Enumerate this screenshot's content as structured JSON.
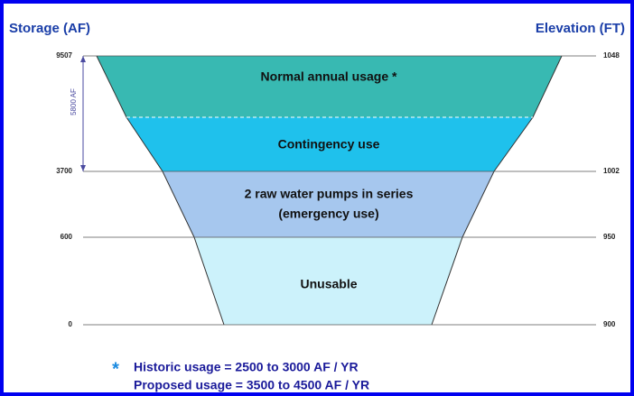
{
  "header": {
    "left_axis": "Storage (AF)",
    "right_axis": "Elevation (FT)"
  },
  "levels": [
    {
      "storage": 9507,
      "elevation": 1048
    },
    {
      "storage": 3700,
      "elevation": 1002
    },
    {
      "storage": 600,
      "elevation": 950
    },
    {
      "storage": 0,
      "elevation": 900
    }
  ],
  "span_label": "5800 AF",
  "zones": [
    "Normal annual usage *",
    "Contingency use",
    "2 raw water pumps in series",
    "(emergency use)",
    "Unusable"
  ],
  "footnote": {
    "marker": "*",
    "lines": [
      "Historic usage = 2500 to 3000 AF / YR",
      "Proposed usage = 3500 to 4500 AF / YR"
    ]
  }
}
